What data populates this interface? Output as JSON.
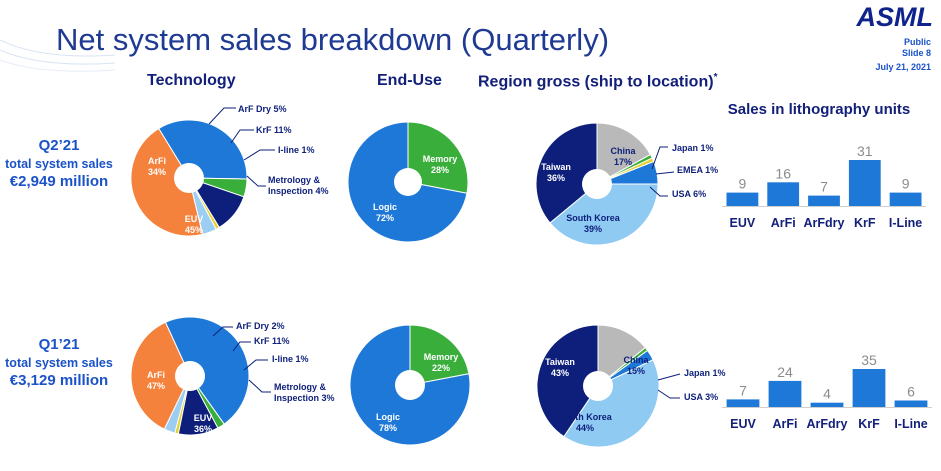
{
  "header": {
    "title": "Net system sales breakdown (Quarterly)",
    "logo": "ASML",
    "classification": "Public",
    "slide": "Slide 8",
    "date": "July 21, 2021"
  },
  "columns": {
    "technology": "Technology",
    "end_use": "End-Use",
    "region": "Region gross (ship to location)",
    "region_mark": "*",
    "lithography": "Sales in lithography units"
  },
  "rows": [
    {
      "quarter": "Q2’21",
      "subtitle": "total system sales",
      "value": "€2,949 million"
    },
    {
      "quarter": "Q1’21",
      "subtitle": "total system sales",
      "value": "€3,129 million"
    }
  ],
  "colors": {
    "title_blue": "#1f3a93",
    "accent_blue": "#1a52c9",
    "arfi": "#1e78d8",
    "euv": "#f5823c",
    "arf_dry": "#3aae3a",
    "krf": "#0d1f7a",
    "iline": "#e6d12e",
    "metrology": "#9ccdf2",
    "memory": "#3aae3a",
    "logic": "#1e78d8",
    "taiwan": "#0d1f7a",
    "china": "#b9b9b9",
    "japan": "#3aae3a",
    "emea": "#e6d12e",
    "usa": "#1e78d8",
    "south_korea": "#8fcaf3",
    "bar": "#1e78d8"
  },
  "chart_data": [
    {
      "type": "pie",
      "id": "tech_q2",
      "title": "Technology",
      "slices": [
        {
          "label": "ArFi",
          "value": 34,
          "text": "34%",
          "color": "#1e78d8",
          "display": "inside"
        },
        {
          "label": "ArF Dry",
          "value": 5,
          "text": "5%",
          "color": "#3aae3a",
          "display": "callout"
        },
        {
          "label": "KrF",
          "value": 11,
          "text": "11%",
          "color": "#0d1f7a",
          "display": "callout"
        },
        {
          "label": "I-line",
          "value": 1,
          "text": "1%",
          "color": "#e6d12e",
          "display": "callout"
        },
        {
          "label": "Metrology & Inspection",
          "value": 4,
          "text": "4%",
          "color": "#9ccdf2",
          "display": "callout"
        },
        {
          "label": "EUV",
          "value": 45,
          "text": "45%",
          "color": "#f5823c",
          "display": "inside"
        }
      ]
    },
    {
      "type": "pie",
      "id": "end_q2",
      "title": "End-Use",
      "slices": [
        {
          "label": "Memory",
          "value": 28,
          "text": "28%",
          "color": "#3aae3a",
          "display": "inside"
        },
        {
          "label": "Logic",
          "value": 72,
          "text": "72%",
          "color": "#1e78d8",
          "display": "inside"
        }
      ]
    },
    {
      "type": "pie",
      "id": "region_q2",
      "title": "Region gross (ship to location)",
      "slices": [
        {
          "label": "China",
          "value": 17,
          "text": "17%",
          "color": "#b9b9b9",
          "display": "inside"
        },
        {
          "label": "Japan",
          "value": 1,
          "text": "1%",
          "color": "#3aae3a",
          "display": "callout"
        },
        {
          "label": "EMEA",
          "value": 1,
          "text": "1%",
          "color": "#e6d12e",
          "display": "callout"
        },
        {
          "label": "USA",
          "value": 6,
          "text": "6%",
          "color": "#1e78d8",
          "display": "callout"
        },
        {
          "label": "South Korea",
          "value": 39,
          "text": "39%",
          "color": "#8fcaf3",
          "display": "inside"
        },
        {
          "label": "Taiwan",
          "value": 36,
          "text": "36%",
          "color": "#0d1f7a",
          "display": "inside"
        }
      ]
    },
    {
      "type": "bar",
      "id": "litho_q2",
      "title": "Sales in lithography units",
      "categories": [
        "EUV",
        "ArFi",
        "ArFdry",
        "KrF",
        "I-Line"
      ],
      "values": [
        9,
        16,
        7,
        31,
        9
      ]
    },
    {
      "type": "pie",
      "id": "tech_q1",
      "title": "Technology",
      "slices": [
        {
          "label": "ArFi",
          "value": 47,
          "text": "47%",
          "color": "#1e78d8",
          "display": "inside"
        },
        {
          "label": "ArF Dry",
          "value": 2,
          "text": "2%",
          "color": "#3aae3a",
          "display": "callout"
        },
        {
          "label": "KrF",
          "value": 11,
          "text": "11%",
          "color": "#0d1f7a",
          "display": "callout"
        },
        {
          "label": "I-line",
          "value": 1,
          "text": "1%",
          "color": "#e6d12e",
          "display": "callout"
        },
        {
          "label": "Metrology & Inspection",
          "value": 3,
          "text": "3%",
          "color": "#9ccdf2",
          "display": "callout"
        },
        {
          "label": "EUV",
          "value": 36,
          "text": "36%",
          "color": "#f5823c",
          "display": "inside"
        }
      ]
    },
    {
      "type": "pie",
      "id": "end_q1",
      "title": "End-Use",
      "slices": [
        {
          "label": "Memory",
          "value": 22,
          "text": "22%",
          "color": "#3aae3a",
          "display": "inside"
        },
        {
          "label": "Logic",
          "value": 78,
          "text": "78%",
          "color": "#1e78d8",
          "display": "inside"
        }
      ]
    },
    {
      "type": "pie",
      "id": "region_q1",
      "title": "Region gross (ship to location)",
      "slices": [
        {
          "label": "China",
          "value": 15,
          "text": "15%",
          "color": "#b9b9b9",
          "display": "inside"
        },
        {
          "label": "Japan",
          "value": 1,
          "text": "1%",
          "color": "#3aae3a",
          "display": "callout"
        },
        {
          "label": "USA",
          "value": 3,
          "text": "3%",
          "color": "#1e78d8",
          "display": "callout"
        },
        {
          "label": "South Korea",
          "value": 44,
          "text": "44%",
          "color": "#8fcaf3",
          "display": "inside"
        },
        {
          "label": "Taiwan",
          "value": 43,
          "text": "43%",
          "color": "#0d1f7a",
          "display": "inside"
        }
      ]
    },
    {
      "type": "bar",
      "id": "litho_q1",
      "title": "Sales in lithography units",
      "categories": [
        "EUV",
        "ArFi",
        "ArFdry",
        "KrF",
        "I-Line"
      ],
      "values": [
        7,
        24,
        4,
        35,
        6
      ]
    }
  ]
}
